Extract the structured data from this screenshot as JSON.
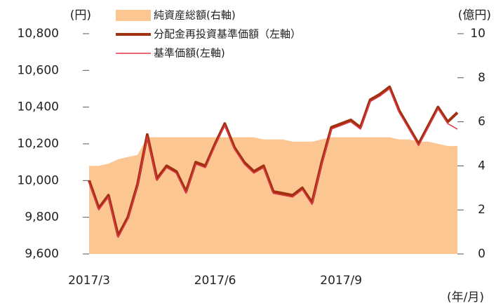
{
  "chart_data": {
    "type": "line",
    "y_unit": "(円)",
    "y2_unit": "(億円)",
    "x_unit": "(年/月)",
    "categories": [
      "2017/3",
      null,
      null,
      null,
      null,
      null,
      null,
      null,
      null,
      null,
      null,
      null,
      null,
      "2017/6",
      null,
      null,
      null,
      null,
      null,
      null,
      null,
      null,
      null,
      null,
      null,
      null,
      "2017/9",
      null,
      null,
      null,
      null,
      null,
      null,
      null,
      null,
      null,
      null,
      null,
      null
    ],
    "series": [
      {
        "name": "純資産総額(右軸)",
        "color": "#fcc692",
        "kind": "area",
        "axis": "y2",
        "values": [
          4.0,
          4.0,
          4.1,
          4.3,
          4.4,
          4.5,
          5.3,
          5.3,
          5.3,
          5.3,
          5.3,
          5.3,
          5.3,
          5.3,
          5.3,
          5.3,
          5.3,
          5.3,
          5.2,
          5.2,
          5.2,
          5.1,
          5.1,
          5.1,
          5.2,
          5.3,
          5.3,
          5.3,
          5.3,
          5.3,
          5.3,
          5.3,
          5.2,
          5.2,
          5.1,
          5.1,
          5.0,
          4.9,
          4.9
        ]
      },
      {
        "name": "分配金再投資基準価額（左軸）",
        "color": "#a0320f",
        "kind": "line",
        "width": 4,
        "values": [
          10000,
          9850,
          9920,
          9700,
          9800,
          9980,
          10250,
          10010,
          10080,
          10050,
          9940,
          10100,
          10080,
          10200,
          10310,
          10180,
          10100,
          10050,
          10080,
          9940,
          9930,
          9920,
          9960,
          9880,
          10100,
          10290,
          10310,
          10330,
          10290,
          10440,
          10470,
          10510,
          10380,
          10290,
          10200,
          10300,
          10400,
          10320,
          10370
        ]
      },
      {
        "name": "基準価額(左軸)",
        "color": "#e03448",
        "kind": "line",
        "width": 1.5,
        "values": [
          9990,
          9840,
          9910,
          9690,
          9790,
          9970,
          10240,
          10000,
          10070,
          10040,
          9930,
          10090,
          10070,
          10190,
          10300,
          10170,
          10090,
          10040,
          10070,
          9930,
          9920,
          9910,
          9950,
          9870,
          10090,
          10280,
          10300,
          10320,
          10280,
          10430,
          10460,
          10500,
          10370,
          10280,
          10190,
          10290,
          10390,
          10310,
          10280
        ]
      }
    ],
    "ylim": [
      9600,
      10800
    ],
    "yticks": [
      {
        "value": 9600,
        "label": "9,600"
      },
      {
        "value": 9800,
        "label": "9,800"
      },
      {
        "value": 10000,
        "label": "10,000"
      },
      {
        "value": 10200,
        "label": "10,200"
      },
      {
        "value": 10400,
        "label": "10,400"
      },
      {
        "value": 10600,
        "label": "10,600"
      },
      {
        "value": 10800,
        "label": "10,800"
      }
    ],
    "y2lim": [
      0,
      10
    ],
    "y2ticks": [
      0,
      2,
      4,
      6,
      8,
      10
    ]
  }
}
